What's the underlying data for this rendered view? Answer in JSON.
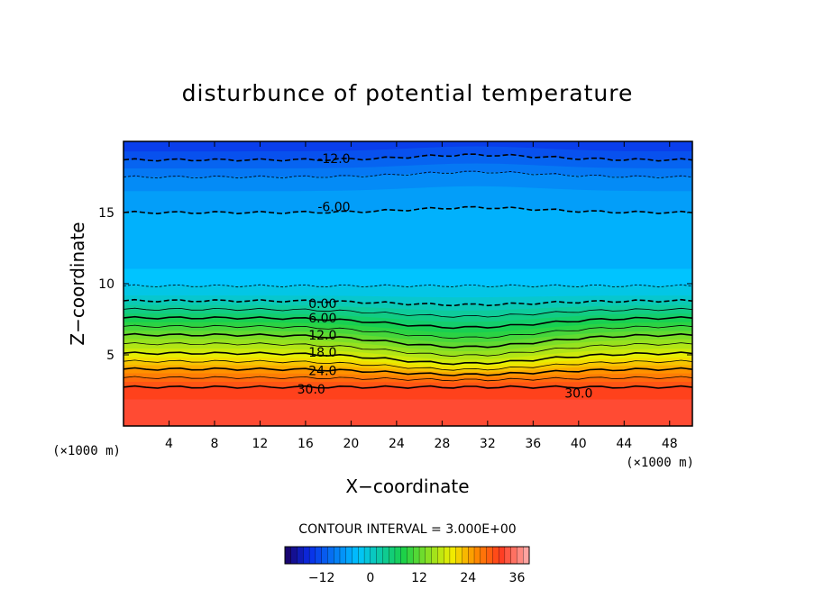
{
  "chart_data": {
    "type": "contour",
    "title": "disturbunce of potential temperature",
    "xlabel": "X−coordinate",
    "ylabel": "Z−coordinate",
    "x_unit": "(×1000 m)",
    "y_unit": "(×1000 m)",
    "xlim": [
      0,
      50
    ],
    "ylim": [
      0,
      20
    ],
    "x_ticks": [
      4,
      8,
      12,
      16,
      20,
      24,
      28,
      32,
      36,
      40,
      44,
      48
    ],
    "y_ticks": [
      5,
      10,
      15
    ],
    "contour_interval_text": "CONTOUR INTERVAL = 3.000E+00",
    "contour_interval": 3.0,
    "contour_labels": [
      {
        "text": "-12.0",
        "x": 18.5,
        "z": 18.8
      },
      {
        "text": "-6.00",
        "x": 18.5,
        "z": 15.4
      },
      {
        "text": "0.00",
        "x": 17.5,
        "z": 8.6
      },
      {
        "text": "6.00",
        "x": 17.5,
        "z": 7.6
      },
      {
        "text": "12.0",
        "x": 17.5,
        "z": 6.4
      },
      {
        "text": "18.0",
        "x": 17.5,
        "z": 5.2
      },
      {
        "text": "24.0",
        "x": 17.5,
        "z": 3.9
      },
      {
        "text": "30.0",
        "x": 16.5,
        "z": 2.6
      },
      {
        "text": "30.0",
        "x": 40.0,
        "z": 2.3
      }
    ],
    "profile": {
      "z": [
        0,
        1.5,
        2.6,
        3.0,
        3.5,
        4.0,
        5.0,
        6.0,
        7.0,
        8.0,
        8.8,
        9.3,
        10.5,
        12.5,
        15.0,
        16.5,
        17.5,
        18.5,
        19.3,
        20.0
      ],
      "theta": [
        33,
        32,
        30.5,
        29,
        26.5,
        24,
        18.5,
        14,
        9,
        4,
        0,
        -2,
        -4.2,
        -5.3,
        -6,
        -7.5,
        -9,
        -11.5,
        -13.5,
        -15
      ]
    },
    "colorbar": {
      "ticks": [
        -12,
        0,
        12,
        24,
        36
      ],
      "range": [
        -21,
        39
      ]
    },
    "colors": {
      "min": "#1a0060",
      "blue": "#0a2be8",
      "cyan": "#00c4ff",
      "green": "#19d04a",
      "yellow": "#f0ee00",
      "orange": "#ff8a00",
      "red": "#ff3a1e",
      "max": "#ffb0b0"
    }
  }
}
